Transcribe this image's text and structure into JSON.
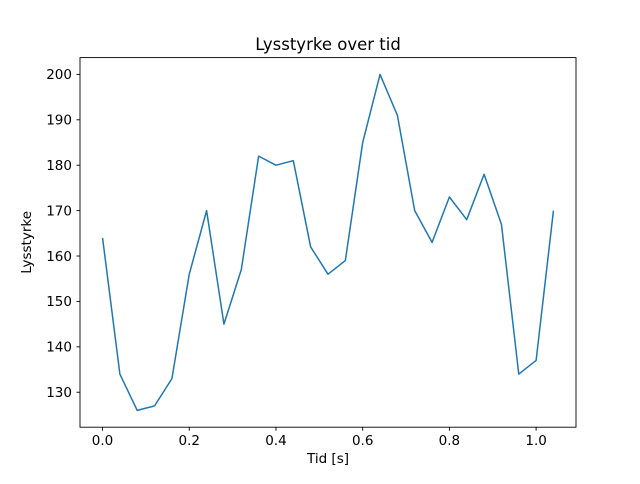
{
  "chart_data": {
    "type": "line",
    "title": "Lysstyrke over tid",
    "xlabel": "Tid [s]",
    "ylabel": "Lysstyrke",
    "x": [
      0.0,
      0.04,
      0.08,
      0.12,
      0.16,
      0.2,
      0.24,
      0.28,
      0.32,
      0.36,
      0.4,
      0.44,
      0.48,
      0.52,
      0.56,
      0.6,
      0.64,
      0.68,
      0.72,
      0.76,
      0.8,
      0.84,
      0.88,
      0.92,
      0.96,
      1.0,
      1.04
    ],
    "y": [
      164,
      134,
      126,
      127,
      133,
      156,
      170,
      145,
      157,
      182,
      180,
      181,
      162,
      156,
      159,
      185,
      200,
      191,
      170,
      163,
      173,
      168,
      178,
      167,
      134,
      137,
      170
    ],
    "xlim": [
      -0.052,
      1.092
    ],
    "ylim": [
      122.3,
      203.7
    ],
    "xticks": [
      {
        "v": 0.0,
        "label": "0.0"
      },
      {
        "v": 0.2,
        "label": "0.2"
      },
      {
        "v": 0.4,
        "label": "0.4"
      },
      {
        "v": 0.6,
        "label": "0.6"
      },
      {
        "v": 0.8,
        "label": "0.8"
      },
      {
        "v": 1.0,
        "label": "1.0"
      }
    ],
    "yticks": [
      {
        "v": 130,
        "label": "130"
      },
      {
        "v": 140,
        "label": "140"
      },
      {
        "v": 150,
        "label": "150"
      },
      {
        "v": 160,
        "label": "160"
      },
      {
        "v": 170,
        "label": "170"
      },
      {
        "v": 180,
        "label": "180"
      },
      {
        "v": 190,
        "label": "190"
      },
      {
        "v": 200,
        "label": "200"
      }
    ],
    "line_color": "#1f77b4",
    "spine_color": "#000000",
    "background_color": "#ffffff",
    "grid": false,
    "legend": null
  }
}
